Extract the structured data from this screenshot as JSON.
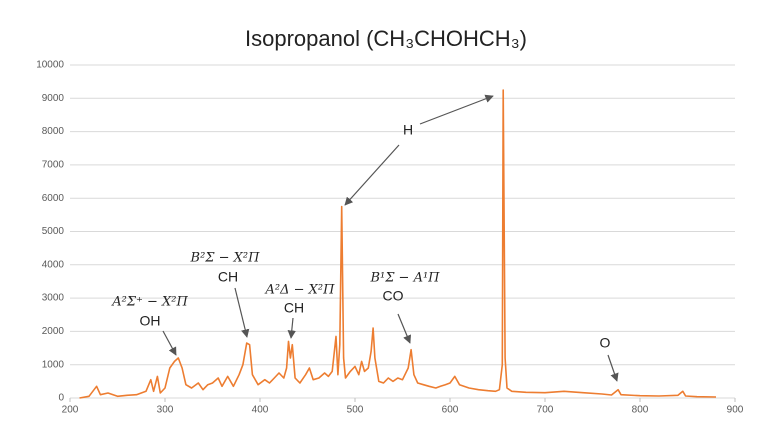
{
  "chart_data": {
    "type": "line",
    "title": "Isopropanol (CH₃CHOHCH₃)",
    "color": "#ed7d31",
    "grid": true,
    "xlim": [
      200,
      900
    ],
    "xticks": [
      200,
      300,
      400,
      500,
      600,
      700,
      800,
      900
    ],
    "ylim": [
      0,
      10000
    ],
    "yticks": [
      0,
      1000,
      2000,
      3000,
      4000,
      5000,
      6000,
      7000,
      8000,
      9000,
      10000
    ],
    "x": [
      210,
      220,
      228,
      232,
      240,
      250,
      260,
      270,
      280,
      285,
      288,
      292,
      295,
      300,
      305,
      310,
      314,
      318,
      322,
      328,
      335,
      340,
      345,
      350,
      356,
      360,
      366,
      372,
      378,
      382,
      386,
      389,
      392,
      398,
      405,
      410,
      415,
      420,
      425,
      428,
      430,
      432,
      434,
      437,
      442,
      448,
      452,
      456,
      462,
      468,
      472,
      476,
      480,
      482,
      484,
      486,
      488,
      490,
      495,
      500,
      504,
      507,
      510,
      514,
      517,
      519,
      521,
      525,
      530,
      535,
      540,
      545,
      550,
      556,
      559,
      562,
      566,
      572,
      578,
      585,
      590,
      595,
      600,
      605,
      610,
      620,
      630,
      640,
      648,
      652,
      655,
      656,
      658,
      660,
      665,
      680,
      700,
      720,
      740,
      760,
      770,
      777,
      780,
      800,
      820,
      840,
      845,
      848,
      860,
      880
    ],
    "values": [
      0,
      50,
      350,
      100,
      150,
      50,
      80,
      100,
      200,
      550,
      200,
      650,
      150,
      300,
      900,
      1100,
      1200,
      900,
      400,
      300,
      450,
      250,
      400,
      450,
      600,
      350,
      650,
      350,
      700,
      1000,
      1650,
      1600,
      700,
      400,
      550,
      450,
      600,
      750,
      600,
      900,
      1700,
      1200,
      1600,
      600,
      450,
      700,
      900,
      550,
      600,
      750,
      650,
      800,
      1850,
      700,
      1600,
      5750,
      1200,
      600,
      800,
      950,
      700,
      1100,
      800,
      900,
      1400,
      2100,
      1200,
      500,
      450,
      600,
      500,
      600,
      550,
      900,
      1450,
      700,
      450,
      400,
      350,
      300,
      350,
      400,
      450,
      650,
      400,
      300,
      250,
      220,
      200,
      250,
      1000,
      9250,
      1200,
      300,
      200,
      170,
      160,
      200,
      160,
      120,
      90,
      250,
      100,
      70,
      60,
      80,
      200,
      60,
      40,
      30
    ],
    "annotations": [
      {
        "lines": [
          "A²Σ⁺ − X²Π",
          "OH"
        ]
      },
      {
        "lines": [
          "B²Σ − X²Π",
          "CH"
        ]
      },
      {
        "lines": [
          "A²Δ − X²Π",
          "CH"
        ]
      },
      {
        "lines": [
          "H"
        ]
      },
      {
        "lines": [
          "B¹Σ − A¹Π",
          "CO"
        ]
      },
      {
        "lines": [
          "O"
        ]
      }
    ]
  }
}
